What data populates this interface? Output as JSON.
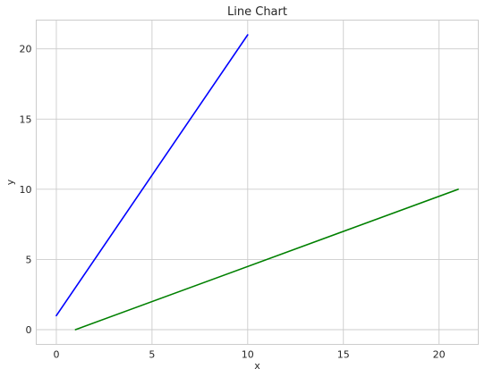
{
  "chart_data": {
    "type": "line",
    "title": "Line Chart",
    "xlabel": "x",
    "ylabel": "y",
    "xlim": [
      -1.05,
      22.05
    ],
    "ylim": [
      -1.05,
      22.05
    ],
    "xticks": [
      0,
      5,
      10,
      15,
      20
    ],
    "yticks": [
      0,
      5,
      10,
      15,
      20
    ],
    "grid": true,
    "series": [
      {
        "color": "#0000ff",
        "x": [
          0,
          10
        ],
        "y": [
          1,
          21
        ]
      },
      {
        "color": "#008000",
        "x": [
          1,
          21
        ],
        "y": [
          0,
          10
        ]
      }
    ]
  }
}
